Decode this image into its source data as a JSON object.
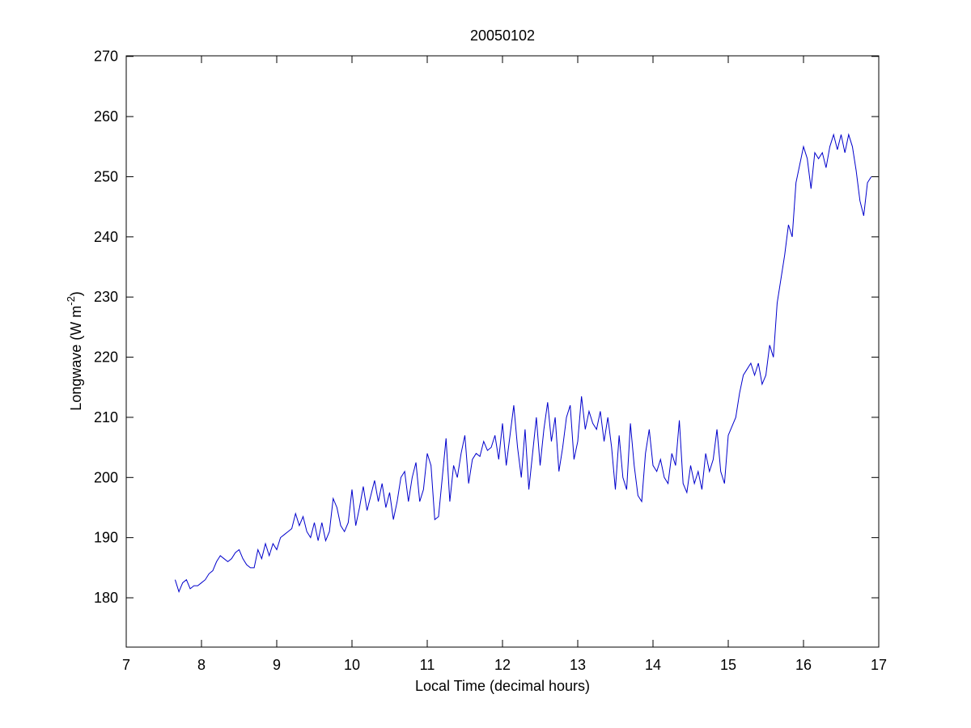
{
  "chart_data": {
    "type": "line",
    "title": "20050102",
    "xlabel": "Local Time (decimal hours)",
    "ylabel": [
      "Longwave (W m",
      "-2",
      ")"
    ],
    "x": [
      7.65,
      7.7,
      7.75,
      7.8,
      7.85,
      7.9,
      7.95,
      8.0,
      8.05,
      8.1,
      8.15,
      8.2,
      8.25,
      8.3,
      8.35,
      8.4,
      8.45,
      8.5,
      8.55,
      8.6,
      8.65,
      8.7,
      8.75,
      8.8,
      8.85,
      8.9,
      8.95,
      9.0,
      9.05,
      9.1,
      9.15,
      9.2,
      9.25,
      9.3,
      9.35,
      9.4,
      9.45,
      9.5,
      9.55,
      9.6,
      9.65,
      9.7,
      9.75,
      9.8,
      9.85,
      9.9,
      9.95,
      10.0,
      10.05,
      10.1,
      10.15,
      10.2,
      10.25,
      10.3,
      10.35,
      10.4,
      10.45,
      10.5,
      10.55,
      10.6,
      10.65,
      10.7,
      10.75,
      10.8,
      10.85,
      10.9,
      10.95,
      11.0,
      11.05,
      11.1,
      11.15,
      11.2,
      11.25,
      11.3,
      11.35,
      11.4,
      11.45,
      11.5,
      11.55,
      11.6,
      11.65,
      11.7,
      11.75,
      11.8,
      11.85,
      11.9,
      11.95,
      12.0,
      12.05,
      12.1,
      12.15,
      12.2,
      12.25,
      12.3,
      12.35,
      12.4,
      12.45,
      12.5,
      12.55,
      12.6,
      12.65,
      12.7,
      12.75,
      12.8,
      12.85,
      12.9,
      12.95,
      13.0,
      13.05,
      13.1,
      13.15,
      13.2,
      13.25,
      13.3,
      13.35,
      13.4,
      13.45,
      13.5,
      13.55,
      13.6,
      13.65,
      13.7,
      13.75,
      13.8,
      13.85,
      13.9,
      13.95,
      14.0,
      14.05,
      14.1,
      14.15,
      14.2,
      14.25,
      14.3,
      14.35,
      14.4,
      14.45,
      14.5,
      14.55,
      14.6,
      14.65,
      14.7,
      14.75,
      14.8,
      14.85,
      14.9,
      14.95,
      15.0,
      15.05,
      15.1,
      15.15,
      15.2,
      15.25,
      15.3,
      15.35,
      15.4,
      15.45,
      15.5,
      15.55,
      15.6,
      15.65,
      15.7,
      15.75,
      15.8,
      15.85,
      15.9,
      15.95,
      16.0,
      16.05,
      16.1,
      16.15,
      16.2,
      16.25,
      16.3,
      16.35,
      16.4,
      16.45,
      16.5,
      16.55,
      16.6,
      16.65,
      16.7,
      16.75,
      16.8,
      16.85,
      16.9
    ],
    "series": [
      {
        "color": "#0000cc",
        "values": [
          183,
          181,
          182.5,
          183,
          181.5,
          182,
          182,
          182.5,
          183,
          184,
          184.5,
          186,
          187,
          186.5,
          186,
          186.5,
          187.5,
          188,
          186.5,
          185.5,
          185,
          185,
          188,
          186.5,
          189,
          187,
          189,
          188,
          190,
          190.5,
          191,
          191.5,
          194,
          192,
          193.5,
          191,
          190,
          192.5,
          189.5,
          192.5,
          189.5,
          191,
          196.5,
          195,
          192,
          191,
          192.5,
          198,
          192,
          195,
          198.5,
          194.5,
          197,
          199.5,
          196,
          199,
          195,
          197.5,
          193,
          196,
          200,
          201,
          196,
          200,
          202.5,
          196,
          198,
          204,
          202,
          193,
          193.5,
          200,
          206.5,
          196,
          202,
          200,
          204,
          207,
          199,
          203,
          204,
          203.5,
          206,
          204.5,
          205,
          207,
          203,
          209,
          202,
          207,
          212,
          205,
          200,
          208,
          198,
          204,
          210,
          202,
          208,
          212.5,
          206,
          210,
          201,
          205,
          210,
          212,
          203,
          206,
          213.5,
          208,
          211,
          209,
          208,
          211,
          206,
          210,
          205,
          198,
          207,
          200,
          198,
          209,
          202,
          197,
          196,
          204,
          208,
          202,
          201,
          203,
          200,
          199,
          204,
          202,
          209.5,
          199,
          197.5,
          202,
          199,
          201,
          198,
          204,
          201,
          203,
          208,
          201,
          199,
          207,
          208.5,
          210,
          214,
          217,
          218,
          219,
          217,
          219,
          215.5,
          217,
          222,
          220,
          229,
          233,
          237,
          242,
          240,
          249,
          252,
          255,
          253,
          248,
          254,
          253,
          254,
          251.5,
          255,
          257,
          254.5,
          257,
          254,
          257,
          255,
          251,
          246,
          243.5,
          249,
          250
        ]
      }
    ],
    "xlim": [
      7,
      17
    ],
    "xticks": [
      7,
      8,
      9,
      10,
      11,
      12,
      13,
      14,
      15,
      16,
      17
    ],
    "ylim": [
      171.8,
      270.1
    ],
    "yticks": [
      180,
      190,
      200,
      210,
      220,
      230,
      240,
      250,
      260,
      270
    ]
  }
}
